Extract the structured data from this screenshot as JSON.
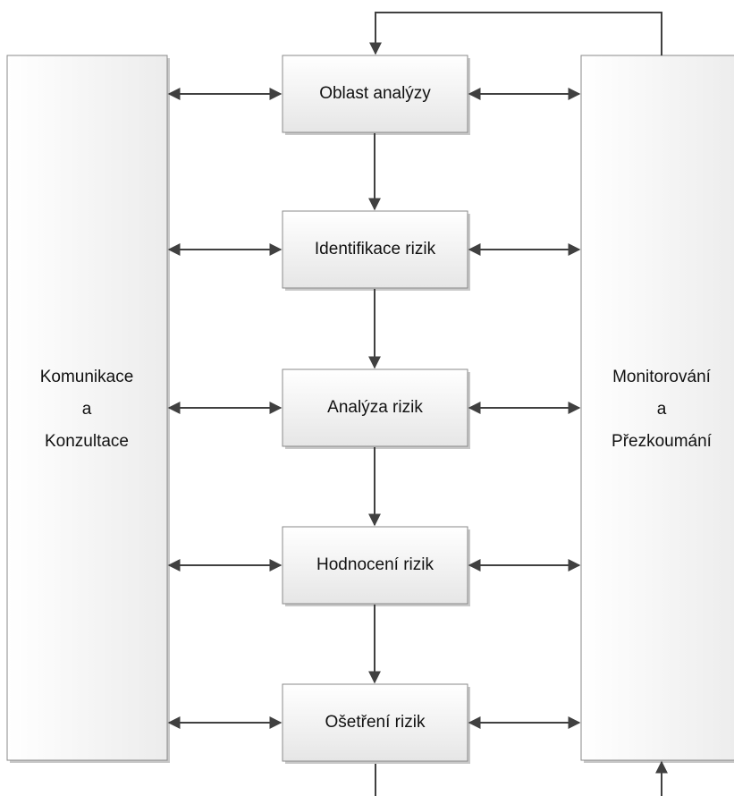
{
  "left_panel": {
    "lines": [
      "Komunikace",
      "a",
      "Konzultace"
    ]
  },
  "right_panel": {
    "lines": [
      "Monitorování",
      "a",
      "Přezkoumání"
    ]
  },
  "steps": [
    "Oblast analýzy",
    "Identifikace rizik",
    "Analýza rizik",
    "Hodnocení rizik",
    "Ošetření rizik"
  ]
}
